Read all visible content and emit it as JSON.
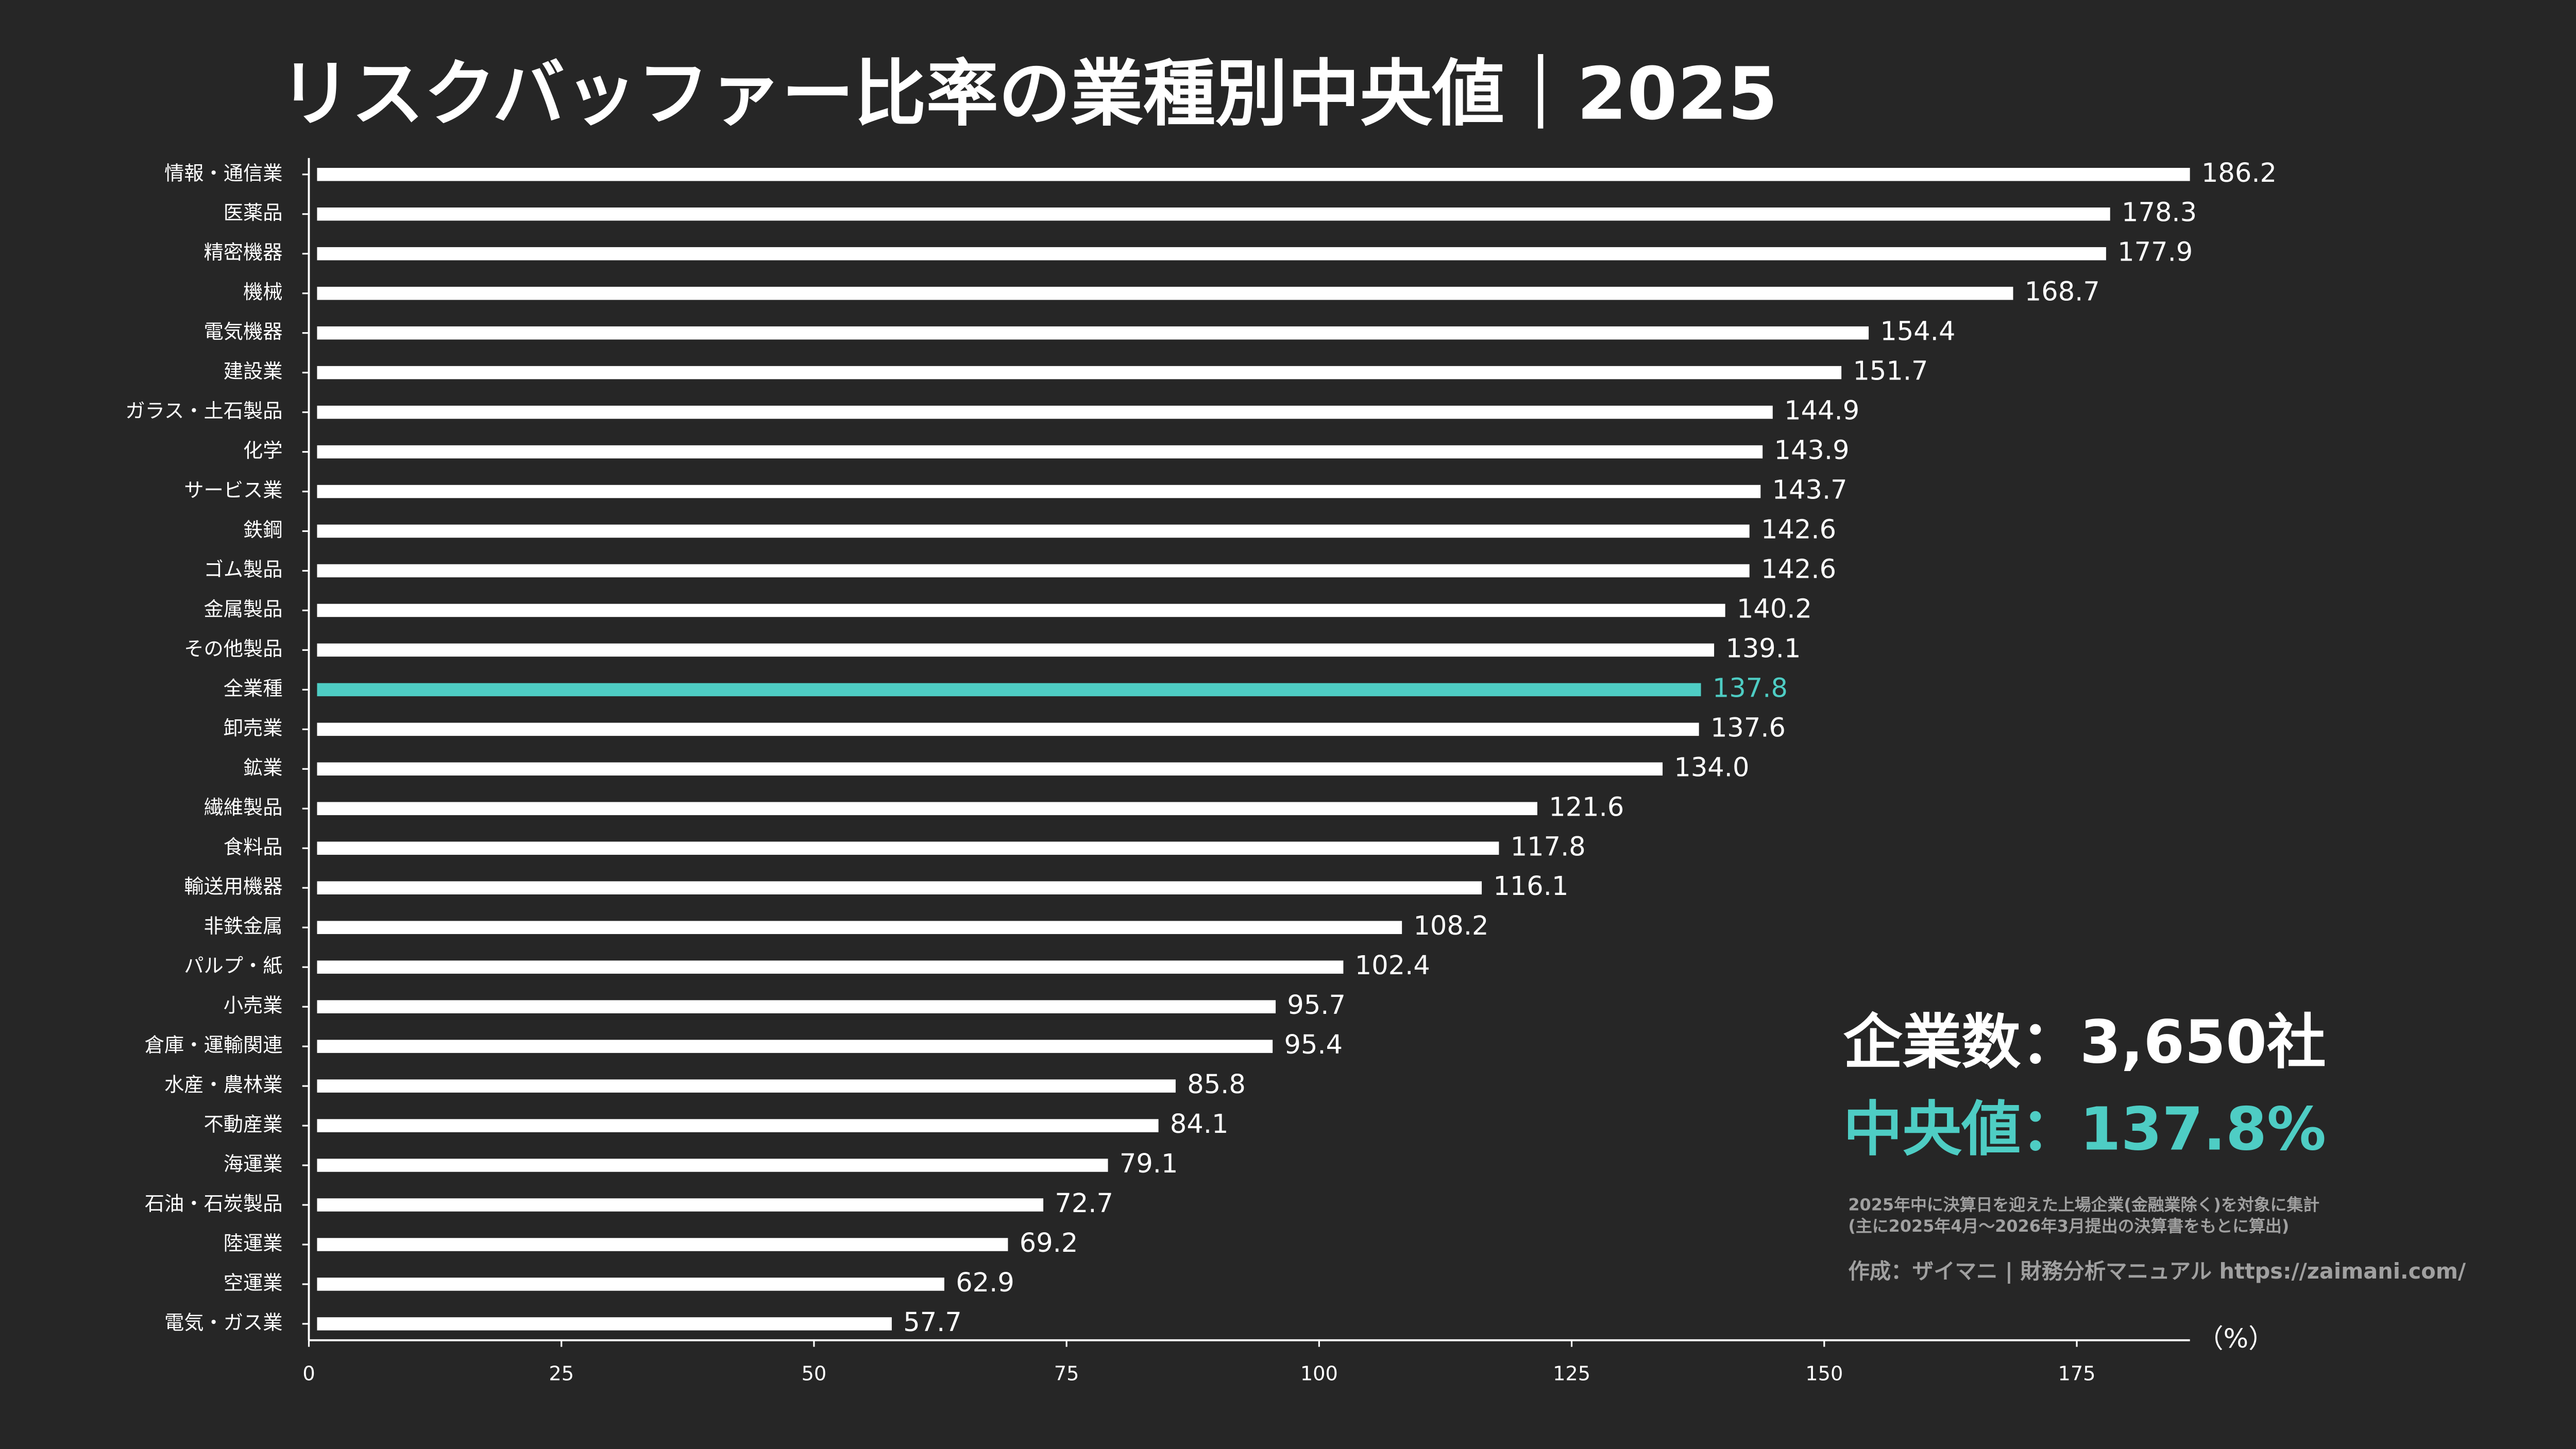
{
  "chart_data": {
    "type": "bar",
    "orientation": "horizontal",
    "title": "リスクバッファー比率の業種別中央値｜2025",
    "categories": [
      "情報・通信業",
      "医薬品",
      "精密機器",
      "機械",
      "電気機器",
      "建設業",
      "ガラス・土石製品",
      "化学",
      "サービス業",
      "鉄鋼",
      "ゴム製品",
      "金属製品",
      "その他製品",
      "全業種",
      "卸売業",
      "鉱業",
      "繊維製品",
      "食料品",
      "輸送用機器",
      "非鉄金属",
      "パルプ・紙",
      "小売業",
      "倉庫・運輸関連",
      "水産・農林業",
      "不動産業",
      "海運業",
      "石油・石炭製品",
      "陸運業",
      "空運業",
      "電気・ガス業"
    ],
    "values": [
      186.2,
      178.3,
      177.9,
      168.7,
      154.4,
      151.7,
      144.9,
      143.9,
      143.7,
      142.6,
      142.6,
      140.2,
      139.1,
      137.8,
      137.6,
      134.0,
      121.6,
      117.8,
      116.1,
      108.2,
      102.4,
      95.7,
      95.4,
      85.8,
      84.1,
      79.1,
      72.7,
      69.2,
      62.9,
      57.7
    ],
    "value_labels": [
      "186.2",
      "178.3",
      "177.9",
      "168.7",
      "154.4",
      "151.7",
      "144.9",
      "143.9",
      "143.7",
      "142.6",
      "142.6",
      "140.2",
      "139.1",
      "137.8",
      "137.6",
      "134.0",
      "121.6",
      "117.8",
      "116.1",
      "108.2",
      "102.4",
      "95.7",
      "95.4",
      "85.8",
      "84.1",
      "79.1",
      "72.7",
      "69.2",
      "62.9",
      "57.7"
    ],
    "colors": [
      "#ffffff",
      "#ffffff",
      "#ffffff",
      "#ffffff",
      "#ffffff",
      "#ffffff",
      "#ffffff",
      "#ffffff",
      "#ffffff",
      "#ffffff",
      "#ffffff",
      "#ffffff",
      "#ffffff",
      "#4ecdc4",
      "#ffffff",
      "#ffffff",
      "#ffffff",
      "#ffffff",
      "#ffffff",
      "#ffffff",
      "#ffffff",
      "#ffffff",
      "#ffffff",
      "#ffffff",
      "#ffffff",
      "#ffffff",
      "#ffffff",
      "#ffffff",
      "#ffffff",
      "#ffffff"
    ],
    "xlim": [
      0,
      186.2
    ],
    "xticks": [
      0,
      25,
      50,
      75,
      100,
      125,
      150,
      175
    ],
    "x_unit": "（%）",
    "annotations": [
      {
        "text": "企業数：3,650社",
        "color": "#ffffff"
      },
      {
        "text": "中央値：137.8%",
        "color": "#4ecdc4"
      }
    ],
    "notes": [
      "2025年中に決算日を迎えた上場企業(金融業除く)を対象に集計",
      "(主に2025年4月〜2026年3月提出の決算書をもとに算出)"
    ],
    "credit": "作成：ザイマニ | 財務分析マニュアル https://zaimani.com/"
  }
}
